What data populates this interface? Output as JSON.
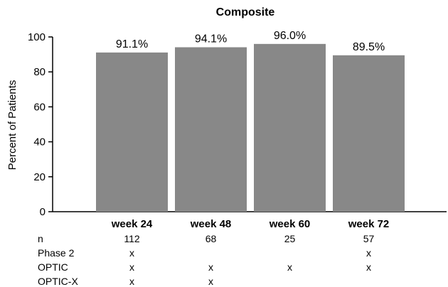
{
  "chart_data": {
    "type": "bar",
    "title": "Composite",
    "xlabel": "",
    "ylabel": "Percent of Patients",
    "ylim": [
      0,
      100
    ],
    "yticks": [
      0,
      20,
      40,
      60,
      80,
      100
    ],
    "categories": [
      "week 24",
      "week 48",
      "week 60",
      "week 72"
    ],
    "values": [
      91.1,
      94.1,
      96.0,
      89.5
    ],
    "data_labels": [
      "91.1%",
      "94.1%",
      "96.0%",
      "89.5%"
    ],
    "bar_color": "#888888",
    "grid": false,
    "legend": "none"
  },
  "table": {
    "rows": [
      {
        "label": "n",
        "cells": [
          "112",
          "68",
          "25",
          "57"
        ]
      },
      {
        "label": "Phase 2",
        "cells": [
          "x",
          "",
          "",
          "x"
        ]
      },
      {
        "label": "OPTIC",
        "cells": [
          "x",
          "x",
          "x",
          "x"
        ]
      },
      {
        "label": "OPTIC-X",
        "cells": [
          "x",
          "x",
          "",
          ""
        ]
      }
    ]
  }
}
